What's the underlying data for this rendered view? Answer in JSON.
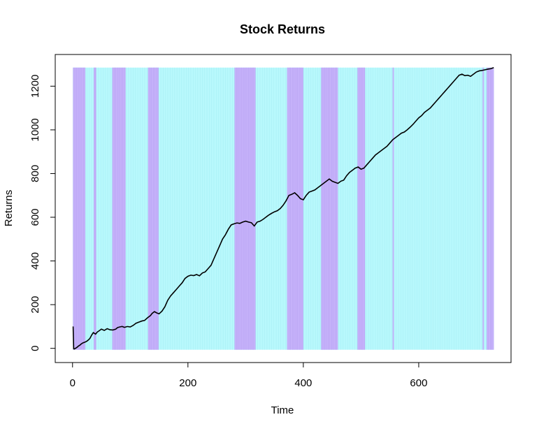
{
  "chart_data": {
    "type": "line",
    "title": "Stock Returns",
    "xlabel": "Time",
    "ylabel": "Returns",
    "xlim": [
      -30,
      760
    ],
    "ylim": [
      -65,
      1345
    ],
    "xticks": [
      0,
      200,
      400,
      600
    ],
    "yticks": [
      0,
      200,
      400,
      600,
      800,
      1000,
      1200
    ],
    "grid": false,
    "legend": "none",
    "colors": {
      "line": "#000000",
      "regime_bull": "#b8f8fc",
      "regime_bear": "#c6b2fa"
    },
    "regime_shading": {
      "y_top": 1285,
      "bull_color": "#b8f8fc",
      "bear_color": "#c6b2fa",
      "bear_intervals": [
        [
          1,
          22
        ],
        [
          37,
          41
        ],
        [
          69,
          92
        ],
        [
          131,
          149
        ],
        [
          281,
          317
        ],
        [
          372,
          400
        ],
        [
          431,
          460
        ],
        [
          494,
          507
        ],
        [
          555,
          557
        ],
        [
          711,
          713
        ],
        [
          718,
          730
        ]
      ]
    },
    "series": [
      {
        "x": [
          1,
          2,
          3,
          5,
          8,
          10,
          13,
          15,
          18,
          20,
          23,
          26,
          30,
          33,
          36,
          40,
          43,
          46,
          50,
          55,
          60,
          65,
          70,
          75,
          78,
          82,
          86,
          90,
          95,
          100,
          105,
          110,
          115,
          120,
          125,
          130,
          135,
          138,
          142,
          146,
          150,
          155,
          160,
          165,
          170,
          175,
          180,
          185,
          190,
          195,
          200,
          205,
          210,
          215,
          220,
          225,
          230,
          235,
          240,
          245,
          250,
          255,
          260,
          265,
          270,
          275,
          280,
          285,
          290,
          295,
          300,
          305,
          310,
          315,
          320,
          325,
          330,
          335,
          340,
          345,
          350,
          355,
          360,
          365,
          370,
          375,
          380,
          385,
          390,
          395,
          400,
          405,
          410,
          415,
          420,
          425,
          430,
          435,
          440,
          445,
          450,
          455,
          460,
          465,
          470,
          475,
          480,
          485,
          490,
          495,
          500,
          505,
          510,
          515,
          520,
          525,
          530,
          535,
          540,
          545,
          550,
          555,
          560,
          565,
          570,
          575,
          580,
          585,
          590,
          595,
          600,
          605,
          610,
          615,
          620,
          625,
          630,
          635,
          640,
          645,
          650,
          655,
          660,
          665,
          670,
          675,
          680,
          685,
          690,
          695,
          700,
          705,
          710,
          715,
          720,
          725,
          730
        ],
        "y": [
          100,
          -2,
          -3,
          0,
          5,
          10,
          15,
          20,
          25,
          27,
          30,
          35,
          45,
          60,
          72,
          65,
          75,
          80,
          88,
          82,
          90,
          85,
          84,
          88,
          95,
          98,
          100,
          96,
          100,
          98,
          105,
          115,
          120,
          125,
          128,
          140,
          150,
          160,
          168,
          162,
          158,
          170,
          190,
          220,
          240,
          255,
          270,
          285,
          300,
          320,
          330,
          335,
          333,
          338,
          332,
          345,
          350,
          365,
          380,
          410,
          440,
          470,
          500,
          520,
          545,
          565,
          570,
          574,
          572,
          578,
          582,
          578,
          575,
          560,
          578,
          582,
          590,
          600,
          610,
          618,
          625,
          630,
          640,
          655,
          675,
          700,
          705,
          712,
          700,
          685,
          680,
          700,
          715,
          720,
          725,
          735,
          745,
          755,
          765,
          775,
          765,
          760,
          755,
          765,
          770,
          790,
          805,
          815,
          825,
          830,
          820,
          825,
          840,
          855,
          870,
          885,
          895,
          905,
          915,
          925,
          940,
          955,
          965,
          975,
          985,
          990,
          1000,
          1012,
          1025,
          1040,
          1055,
          1065,
          1080,
          1090,
          1100,
          1115,
          1130,
          1145,
          1160,
          1175,
          1190,
          1205,
          1220,
          1235,
          1250,
          1255,
          1248,
          1250,
          1245,
          1255,
          1265,
          1270,
          1272,
          1275,
          1278,
          1280,
          1285
        ]
      }
    ]
  }
}
